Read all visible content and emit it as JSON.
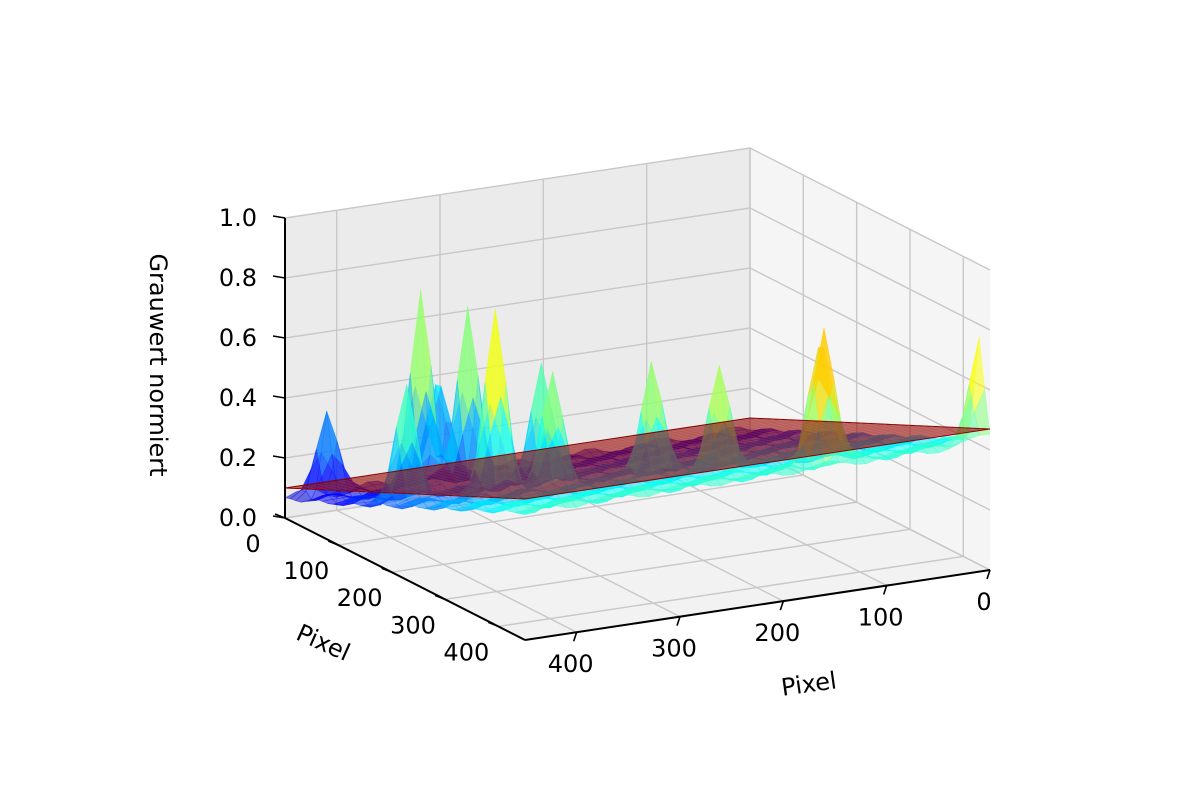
{
  "chart_data": {
    "type": "surface3d",
    "title": "",
    "xlabel": "Pixel",
    "ylabel": "Pixel",
    "zlabel": "Grauwert normiert",
    "x_ticks": [
      "0",
      "100",
      "200",
      "300",
      "400"
    ],
    "y_ticks": [
      "0",
      "100",
      "200",
      "300",
      "400"
    ],
    "z_ticks": [
      "0.0",
      "0.2",
      "0.4",
      "0.6",
      "0.8",
      "1.0"
    ],
    "xlim": [
      0,
      450
    ],
    "ylim": [
      0,
      450
    ],
    "zlim": [
      0,
      1
    ],
    "grid": true,
    "colormap": "jet",
    "series": [
      {
        "kind": "surface",
        "description_visible": false,
        "peaks": [
          {
            "x": 0,
            "y": 430,
            "z": 0.8
          },
          {
            "x": 140,
            "y": 410,
            "z": 0.88
          },
          {
            "x": 130,
            "y": 385,
            "z": 0.85
          },
          {
            "x": 200,
            "y": 330,
            "z": 0.72
          },
          {
            "x": 240,
            "y": 280,
            "z": 0.7
          },
          {
            "x": 320,
            "y": 250,
            "z": 0.68
          },
          {
            "x": 360,
            "y": 220,
            "z": 0.88
          },
          {
            "x": 300,
            "y": 190,
            "z": 0.66
          },
          {
            "x": 420,
            "y": 170,
            "z": 0.62
          },
          {
            "x": 330,
            "y": 110,
            "z": 0.8
          },
          {
            "x": 360,
            "y": 80,
            "z": 0.84
          },
          {
            "x": 330,
            "y": 55,
            "z": 0.55
          },
          {
            "x": 420,
            "y": 20,
            "z": 0.4
          }
        ]
      },
      {
        "kind": "plane",
        "color": "#8b0000",
        "corners": [
          {
            "x": 0,
            "y": 450,
            "z": 0.47
          },
          {
            "x": 450,
            "y": 0,
            "z": 0.1
          }
        ]
      }
    ]
  }
}
